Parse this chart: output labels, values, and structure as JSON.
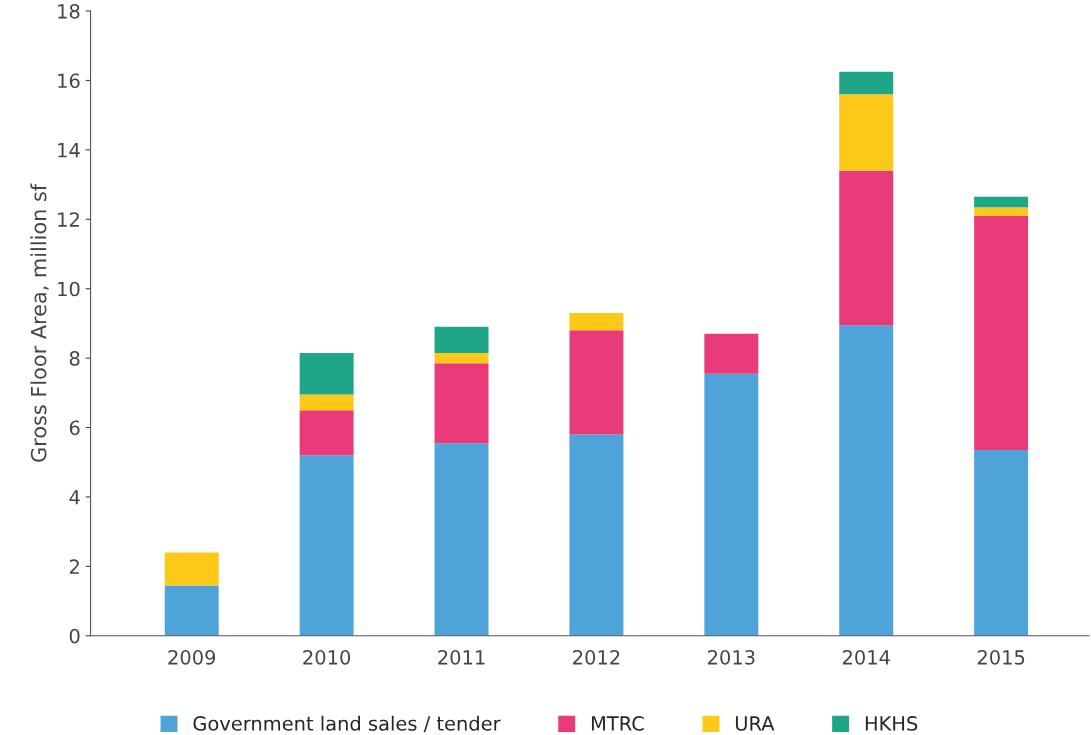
{
  "chart_data": {
    "type": "bar",
    "stacked": true,
    "ylabel": "Gross Floor Area, million sf",
    "categories": [
      "2009",
      "2010",
      "2011",
      "2012",
      "2013",
      "2014",
      "2015"
    ],
    "series": [
      {
        "name": "Government land sales / tender",
        "color": "#4ea3d9",
        "values": [
          1.45,
          5.2,
          5.55,
          5.8,
          7.55,
          8.95,
          5.35
        ]
      },
      {
        "name": "MTRC",
        "color": "#e93b7a",
        "values": [
          0,
          1.3,
          2.3,
          3.0,
          1.15,
          4.45,
          6.75
        ]
      },
      {
        "name": "URA",
        "color": "#fdc918",
        "values": [
          0.95,
          0.45,
          0.3,
          0.5,
          0,
          2.2,
          0.25
        ]
      },
      {
        "name": "HKHS",
        "color": "#1fa588",
        "values": [
          0,
          1.2,
          0.75,
          0,
          0,
          0.65,
          0.3
        ]
      }
    ],
    "ylim": [
      0,
      18
    ],
    "yticks": [
      0,
      2,
      4,
      6,
      8,
      10,
      12,
      14,
      16,
      18
    ],
    "grid": false,
    "legend": "bottom"
  }
}
